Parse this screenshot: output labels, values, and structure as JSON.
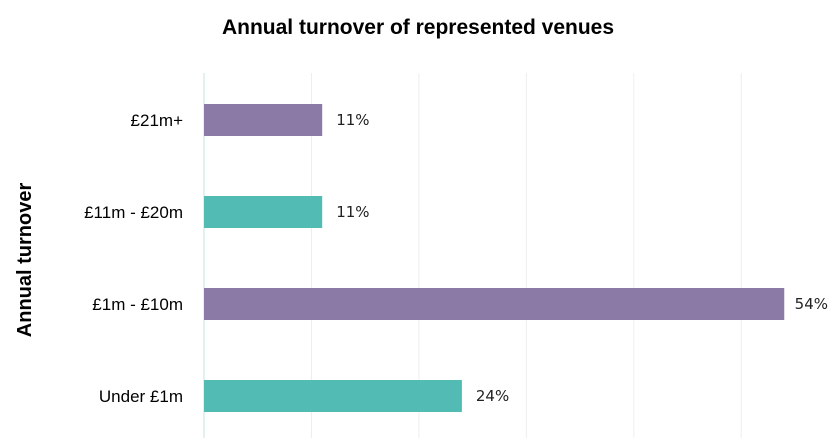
{
  "chart_data": {
    "type": "bar",
    "orientation": "horizontal",
    "title": "Annual turnover of represented venues",
    "xlabel": "",
    "ylabel": "Annual turnover",
    "categories": [
      "£21m+",
      "£11m - £20m",
      "£1m - £10m",
      "Under £1m"
    ],
    "values": [
      11,
      11,
      54,
      24
    ],
    "data_labels": [
      "11%",
      "11%",
      "54%",
      "24%"
    ],
    "xlim": [
      0,
      55
    ],
    "grid": true,
    "legend": "none",
    "colors": [
      "#8b79a6",
      "#52bbb4",
      "#8b79a6",
      "#52bbb4"
    ]
  }
}
